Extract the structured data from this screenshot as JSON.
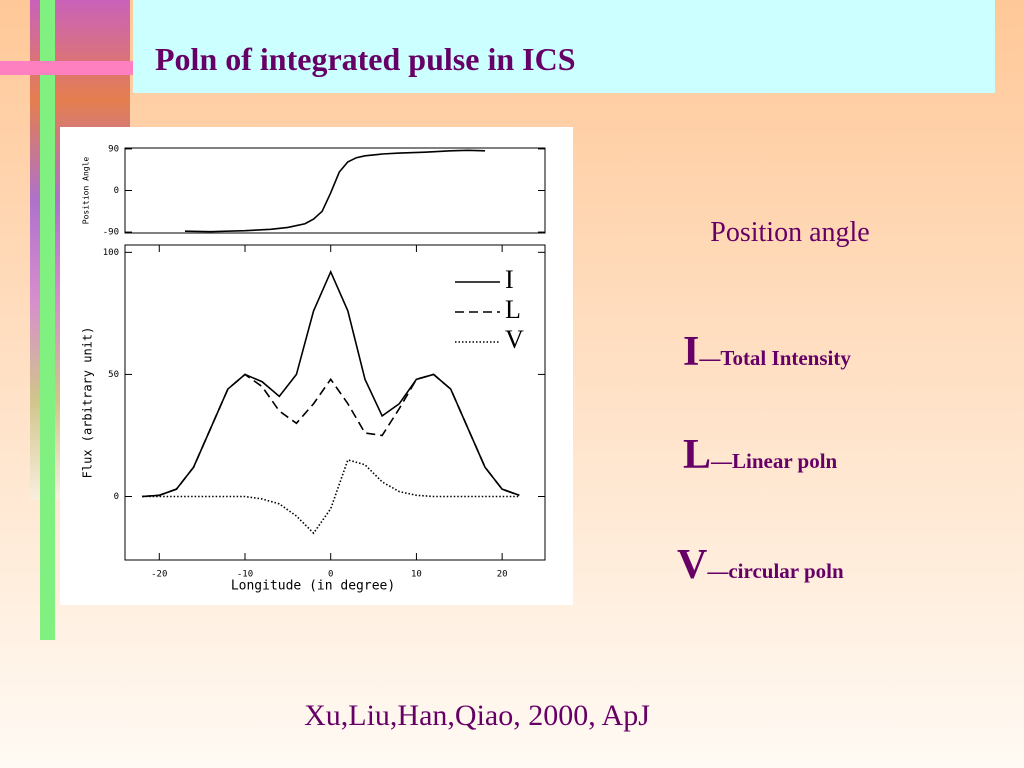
{
  "title": "Poln of integrated pulse in ICS",
  "chart_data": [
    {
      "type": "line",
      "ylabel": "Position Angle",
      "x": [
        -17,
        -14,
        -10,
        -7,
        -5,
        -3,
        -2,
        -1,
        0,
        1,
        2,
        3,
        4,
        6,
        8,
        11,
        14,
        16,
        18
      ],
      "series": [
        {
          "name": "Position Angle",
          "color": "#000000",
          "dash": "solid",
          "values": [
            -88,
            -89,
            -87,
            -84,
            -80,
            -72,
            -62,
            -45,
            -5,
            40,
            62,
            71,
            75,
            79,
            81,
            83,
            86,
            87,
            86
          ]
        }
      ],
      "xlim": [
        -24,
        25
      ],
      "ylim": [
        -92,
        92
      ],
      "yticks": [
        -90,
        0,
        90
      ]
    },
    {
      "type": "line",
      "xlabel": "Longitude (in degree)",
      "ylabel": "Flux (arbitrary unit)",
      "x": [
        -22,
        -20,
        -18,
        -16,
        -14,
        -12,
        -10,
        -8,
        -6,
        -4,
        -2,
        0,
        2,
        4,
        6,
        8,
        10,
        12,
        14,
        16,
        18,
        20,
        22
      ],
      "series": [
        {
          "name": "I",
          "color": "#000000",
          "dash": "solid",
          "values": [
            0,
            0.5,
            3,
            12,
            28,
            44,
            50,
            47,
            41,
            50,
            76,
            92,
            76,
            48,
            33,
            38,
            48,
            50,
            44,
            28,
            12,
            3,
            0.5
          ]
        },
        {
          "name": "L",
          "color": "#000000",
          "dash": "dashed",
          "values": [
            0,
            0.5,
            3,
            12,
            28,
            44,
            50,
            45,
            35,
            30,
            38,
            48,
            38,
            26,
            25,
            36,
            48,
            50,
            44,
            28,
            12,
            3,
            0.5
          ]
        },
        {
          "name": "V",
          "color": "#000000",
          "dash": "dotted",
          "values": [
            0,
            0,
            0,
            0,
            0,
            0,
            0,
            -1,
            -3,
            -8,
            -15,
            -5,
            15,
            13,
            6,
            2,
            0.5,
            0,
            0,
            0,
            0,
            0,
            0
          ]
        }
      ],
      "xlim": [
        -24,
        25
      ],
      "ylim": [
        -26,
        103
      ],
      "xticks": [
        -20,
        -10,
        0,
        10,
        20
      ],
      "yticks": [
        0,
        50,
        100
      ],
      "legend": "upper right"
    }
  ],
  "notes": {
    "position_angle": "Position angle",
    "items": [
      {
        "symbol": "I",
        "text": "—Total Intensity"
      },
      {
        "symbol": "L",
        "text": "—Linear poln"
      },
      {
        "symbol": "V",
        "text": "—circular poln"
      }
    ]
  },
  "citation": "Xu,Liu,Han,Qiao, 2000, ApJ"
}
